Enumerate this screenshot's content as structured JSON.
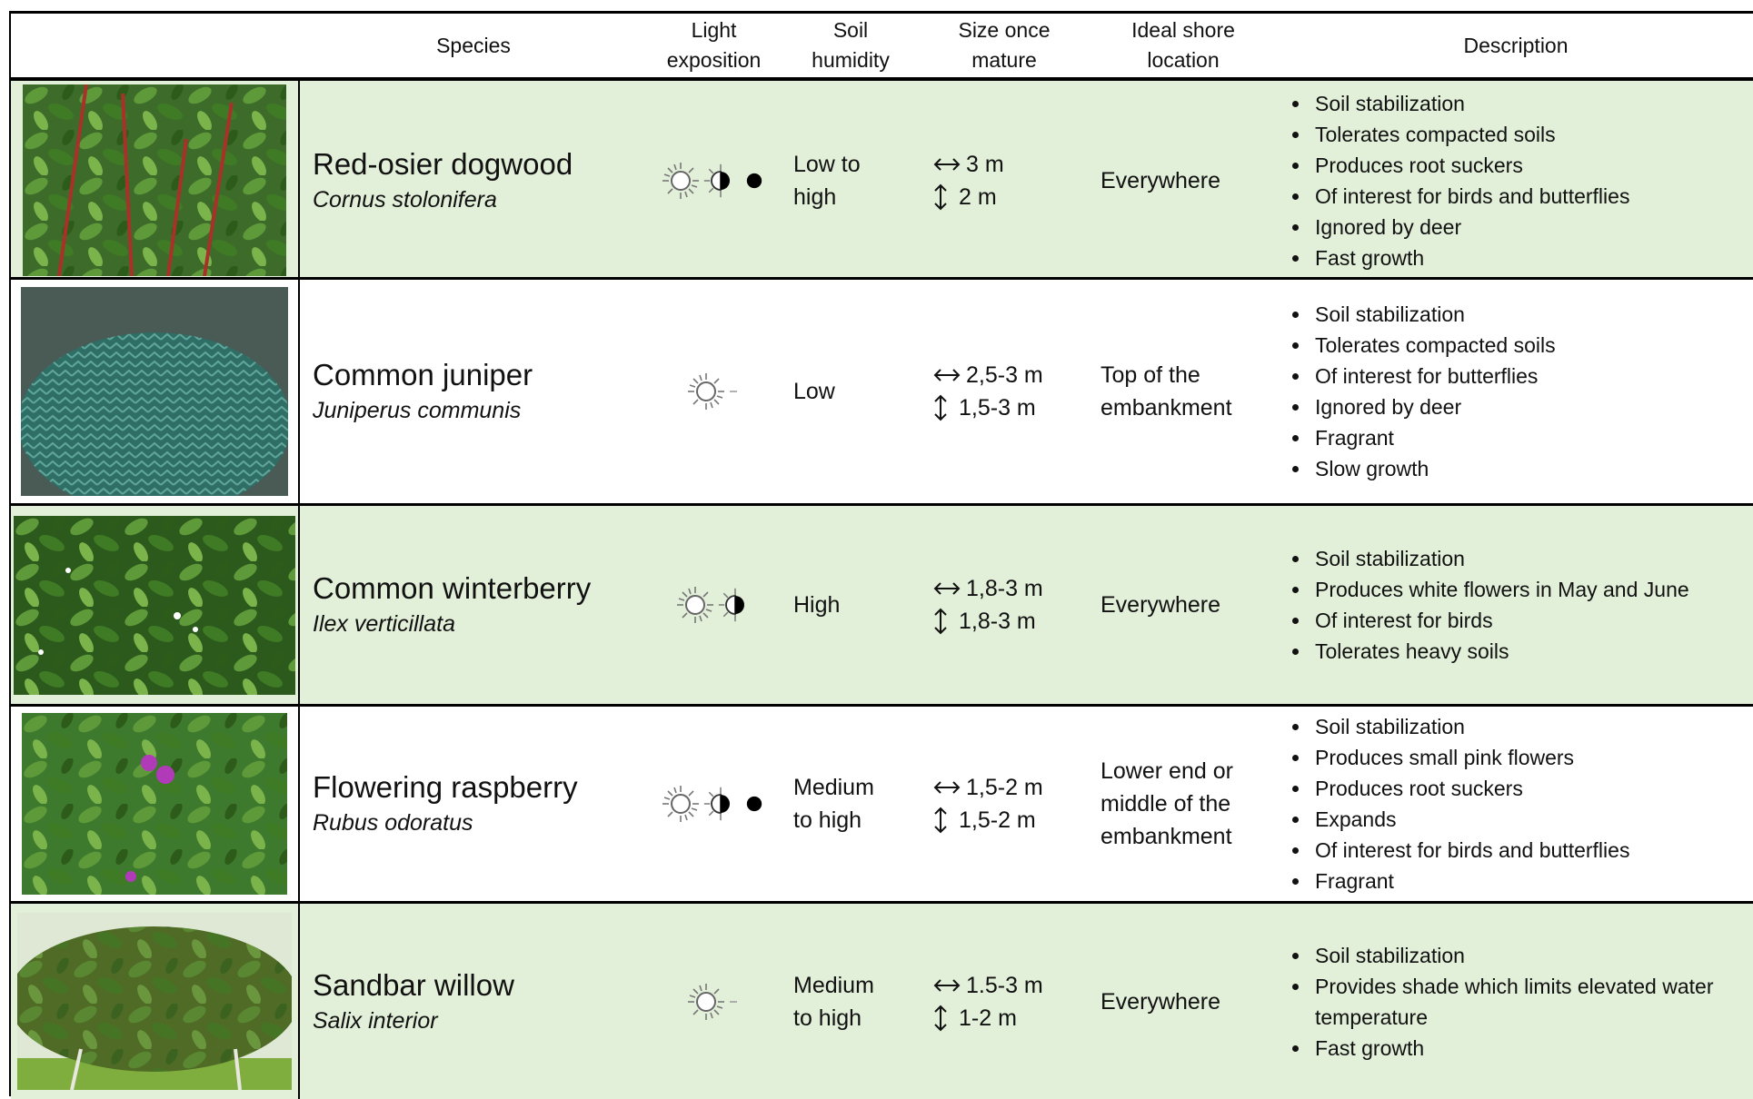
{
  "table": {
    "headers": [
      "Species",
      "Light exposition",
      "Soil humidity",
      "Size once mature",
      "Ideal shore location",
      "Description"
    ],
    "rows": [
      {
        "common_name": "Red-osier dogwood",
        "latin_name": "Cornus stolonifera",
        "soil_humidity": "Low to high",
        "width": "3 m",
        "height": "2 m",
        "location": "Everywhere",
        "description": [
          "Soil stabilization",
          "Tolerates compacted soils",
          "Produces root suckers",
          "Of interest for birds and butterflies",
          "Ignored by deer",
          "Fast growth"
        ]
      },
      {
        "common_name": "Common juniper",
        "latin_name": "Juniperus communis",
        "soil_humidity": "Low",
        "width": "2,5-3 m",
        "height": "1,5-3 m",
        "location": "Top of the embankment",
        "description": [
          "Soil stabilization",
          "Tolerates compacted soils",
          "Of interest for butterflies",
          "Ignored by deer",
          "Fragrant",
          "Slow growth"
        ]
      },
      {
        "common_name": "Common winterberry",
        "latin_name": "Ilex verticillata",
        "soil_humidity": "High",
        "width": "1,8-3 m",
        "height": "1,8-3 m",
        "location": "Everywhere",
        "description": [
          "Soil stabilization",
          "Produces white flowers in May and June",
          "Of interest for birds",
          "Tolerates heavy soils"
        ]
      },
      {
        "common_name": "Flowering raspberry",
        "latin_name": "Rubus odoratus",
        "soil_humidity": "Medium to high",
        "width": "1,5-2 m",
        "height": "1,5-2 m",
        "location": "Lower end or middle of the embankment",
        "description": [
          "Soil stabilization",
          "Produces small pink flowers",
          "Produces root suckers",
          "Expands",
          "Of interest for birds and butterflies",
          "Fragrant"
        ]
      },
      {
        "common_name": "Sandbar willow",
        "latin_name": "Salix interior",
        "soil_humidity": "Medium to high",
        "width": "1.5-3 m",
        "height": "1-2 m",
        "location": "Everywhere",
        "description": [
          "Soil stabilization",
          "Provides shade which limits elevated water temperature",
          "Fast growth"
        ]
      }
    ]
  }
}
